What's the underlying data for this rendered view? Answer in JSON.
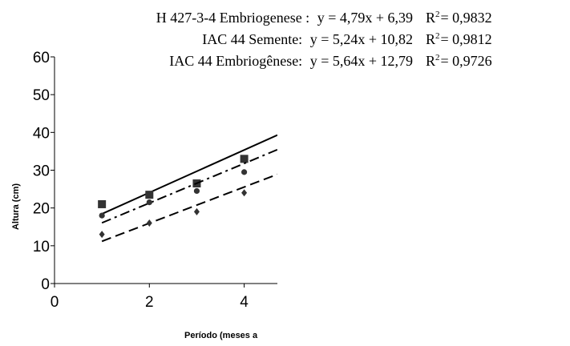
{
  "chart_data": {
    "type": "scatter",
    "title": "",
    "xlabel": "Período (meses a",
    "ylabel": "Altura  (cm)",
    "xlim": [
      0,
      4.7
    ],
    "ylim": [
      0,
      60
    ],
    "x_ticks": [
      "0",
      "2",
      "4"
    ],
    "y_ticks": [
      "0",
      "10",
      "20",
      "30",
      "40",
      "50",
      "60"
    ],
    "grid": false,
    "legend": "none",
    "series": [
      {
        "marker": "square",
        "line_style": "solid",
        "points": [
          [
            1,
            21
          ],
          [
            2,
            23.5
          ],
          [
            3,
            26.5
          ],
          [
            4,
            33
          ]
        ],
        "equation": {
          "label": "IAC 44 Embriogênese:",
          "formula": "y = 5,64x + 12,79",
          "r2_prefix": "R",
          "r2_exp": "2",
          "r2_value": "= 0,9726"
        },
        "fit": {
          "slope": 5.64,
          "intercept": 12.79
        },
        "color": "#000000"
      },
      {
        "marker": "circle",
        "line_style": "dashdot",
        "points": [
          [
            1,
            18
          ],
          [
            2,
            21.5
          ],
          [
            3,
            24.5
          ],
          [
            4,
            29.5
          ]
        ],
        "equation": {
          "label": "IAC 44 Semente:",
          "formula": "y = 5,24x + 10,82",
          "r2_prefix": "R",
          "r2_exp": "2",
          "r2_value": "= 0,9812"
        },
        "fit": {
          "slope": 5.24,
          "intercept": 10.82
        },
        "color": "#000000"
      },
      {
        "marker": "diamond",
        "line_style": "dashed",
        "points": [
          [
            1,
            13
          ],
          [
            2,
            16
          ],
          [
            3,
            19
          ],
          [
            4,
            24
          ]
        ],
        "equation": {
          "label": "H 427-3-4 Embriogenese :",
          "formula": "y = 4,79x +  6,39",
          "r2_prefix": "R",
          "r2_exp": "2",
          "r2_value": "= 0,9832"
        },
        "fit": {
          "slope": 4.79,
          "intercept": 6.39
        },
        "color": "#000000"
      }
    ]
  }
}
